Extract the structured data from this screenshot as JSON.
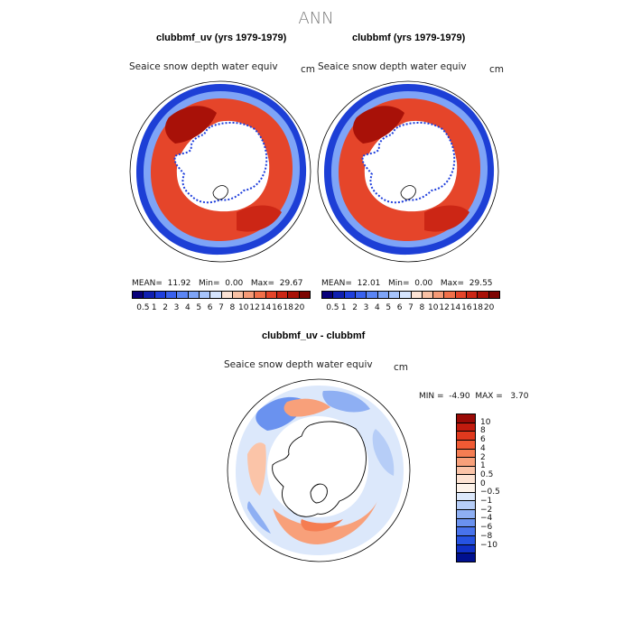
{
  "title": "ANN",
  "panels": [
    {
      "title": "clubbmf_uv (yrs 1979-1979)",
      "variable": "Seaice snow depth water equiv",
      "unit": "cm",
      "mean_label": "MEAN=",
      "mean": "11.92",
      "min_label": "Min=",
      "min": "0.00",
      "max_label": "Max=",
      "max": "29.67"
    },
    {
      "title": "clubbmf (yrs 1979-1979)",
      "variable": "Seaice snow depth water equiv",
      "unit": "cm",
      "mean_label": "MEAN=",
      "mean": "12.01",
      "min_label": "Min=",
      "min": "0.00",
      "max_label": "Max=",
      "max": "29.55"
    }
  ],
  "colorbar_top": {
    "ticks": [
      "0.5",
      "1",
      "2",
      "3",
      "4",
      "5",
      "6",
      "7",
      "8",
      "10",
      "12",
      "14",
      "16",
      "18",
      "20"
    ],
    "colors": [
      "#08007a",
      "#0f1fb0",
      "#1f3fdc",
      "#3a62ee",
      "#5b85f4",
      "#7ea4f7",
      "#a7c4fb",
      "#d5e4fd",
      "#fbe2d4",
      "#f8c0a4",
      "#f59a77",
      "#f1704a",
      "#e5452a",
      "#cc2615",
      "#a81108",
      "#7d0502"
    ]
  },
  "diff_panel": {
    "title": "clubbmf_uv - clubbmf",
    "variable": "Seaice snow depth water equiv",
    "unit": "cm",
    "min_label": "MIN =",
    "min": "-4.90",
    "max_label": "MAX =",
    "max": "3.70"
  },
  "colorbar_diff": {
    "ticks": [
      "10",
      "8",
      "6",
      "4",
      "2",
      "1",
      "0.5",
      "0",
      "−0.5",
      "−1",
      "−2",
      "−4",
      "−6",
      "−8",
      "−10"
    ],
    "colors": [
      "#9a0a06",
      "#c21b0e",
      "#e0391e",
      "#f05a34",
      "#f57d52",
      "#f8a07a",
      "#fbc4a8",
      "#fde3d3",
      "#fdf3ea",
      "#dce8fb",
      "#b6cdf7",
      "#8eaff3",
      "#6a92ef",
      "#4873ec",
      "#2653e2",
      "#1030c6",
      "#00108f"
    ]
  }
}
